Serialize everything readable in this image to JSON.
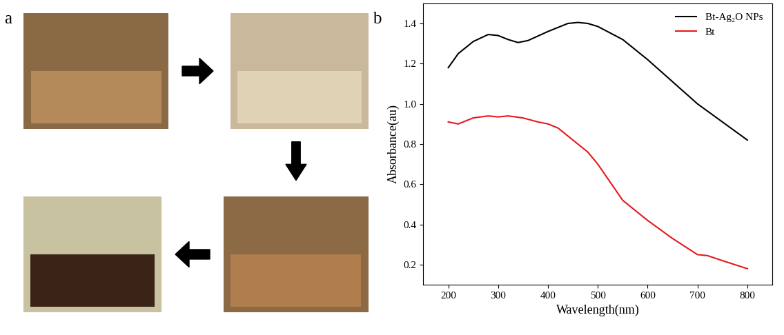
{
  "panel_labels": [
    "a",
    "b"
  ],
  "chart_data": {
    "type": "line",
    "x_label": "Wavelength(nm)",
    "y_label": "Absorbance(au)",
    "xlim": [
      150,
      850
    ],
    "xticks": [
      200,
      300,
      400,
      500,
      600,
      700,
      800
    ],
    "ylim": [
      0.1,
      1.5
    ],
    "yticks": [
      0.2,
      0.4,
      0.6,
      0.8,
      1.0,
      1.2,
      1.4
    ],
    "legend": "upper right",
    "grid": false,
    "series": [
      {
        "name": "Bt-Ag₂O NPs",
        "color": "#000000",
        "x": [
          200,
          220,
          250,
          280,
          300,
          320,
          340,
          360,
          400,
          440,
          460,
          480,
          500,
          550,
          600,
          650,
          700,
          750,
          800
        ],
        "values": [
          1.18,
          1.25,
          1.31,
          1.345,
          1.34,
          1.32,
          1.305,
          1.315,
          1.36,
          1.4,
          1.405,
          1.4,
          1.385,
          1.32,
          1.22,
          1.11,
          1.0,
          0.91,
          0.82
        ]
      },
      {
        "name": "Bt",
        "color": "#e8161b",
        "x": [
          200,
          220,
          250,
          280,
          300,
          320,
          350,
          380,
          400,
          420,
          450,
          480,
          500,
          550,
          600,
          650,
          700,
          720,
          750,
          800
        ],
        "values": [
          0.91,
          0.9,
          0.93,
          0.94,
          0.935,
          0.94,
          0.93,
          0.91,
          0.9,
          0.88,
          0.82,
          0.76,
          0.7,
          0.52,
          0.42,
          0.33,
          0.25,
          0.245,
          0.22,
          0.18
        ]
      }
    ]
  }
}
